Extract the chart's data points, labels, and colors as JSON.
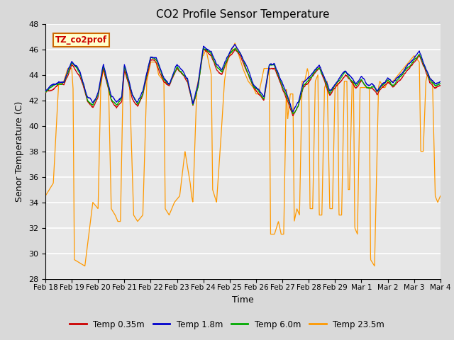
{
  "title": "CO2 Profile Sensor Temperature",
  "ylabel": "Senor Temperature (C)",
  "xlabel": "Time",
  "ylim": [
    28,
    48
  ],
  "yticks": [
    28,
    30,
    32,
    34,
    36,
    38,
    40,
    42,
    44,
    46,
    48
  ],
  "xtick_labels": [
    "Feb 18",
    "Feb 19",
    "Feb 20",
    "Feb 21",
    "Feb 22",
    "Feb 23",
    "Feb 24",
    "Feb 25",
    "Feb 26",
    "Feb 27",
    "Feb 28",
    "Feb 29",
    "Mar 1",
    "Mar 2",
    "Mar 3",
    "Mar 4"
  ],
  "colors": {
    "Temp 0.35m": "#cc0000",
    "Temp 1.8m": "#0000cc",
    "Temp 6.0m": "#00aa00",
    "Temp 23.5m": "#ff9900"
  },
  "legend_label": "TZ_co2prof",
  "fig_bg": "#d9d9d9",
  "plot_bg": "#e8e8e8",
  "annotation_box_color": "#ffffcc",
  "annotation_box_edge": "#cc6600",
  "grid_color": "#ffffff"
}
